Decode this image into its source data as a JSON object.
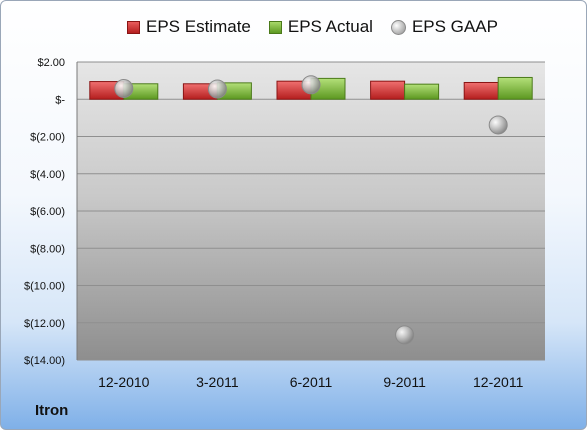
{
  "company": "Itron",
  "colors": {
    "estimate": "#d63a3a",
    "actual": "#8cc152",
    "gaap": "#b9b9b9"
  },
  "chart_data": {
    "type": "bar",
    "categories": [
      "12-2010",
      "3-2011",
      "6-2011",
      "9-2011",
      "12-2011"
    ],
    "series": [
      {
        "name": "EPS Estimate",
        "kind": "bar",
        "values": [
          0.95,
          0.83,
          0.97,
          0.97,
          0.9
        ]
      },
      {
        "name": "EPS Actual",
        "kind": "bar",
        "values": [
          0.83,
          0.88,
          1.12,
          0.81,
          1.17
        ]
      },
      {
        "name": "EPS GAAP",
        "kind": "scatter",
        "values": [
          0.58,
          0.55,
          0.78,
          -12.65,
          -1.38
        ]
      }
    ],
    "ylim": [
      -14,
      2
    ],
    "yticks": [
      2,
      0,
      -2,
      -4,
      -6,
      -8,
      -10,
      -12,
      -14
    ],
    "ytick_labels": [
      "$2.00",
      "$-",
      "$(2.00)",
      "$(4.00)",
      "$(6.00)",
      "$(8.00)",
      "$(10.00)",
      "$(12.00)",
      "$(14.00)"
    ],
    "grid": true,
    "legend_position": "top"
  }
}
